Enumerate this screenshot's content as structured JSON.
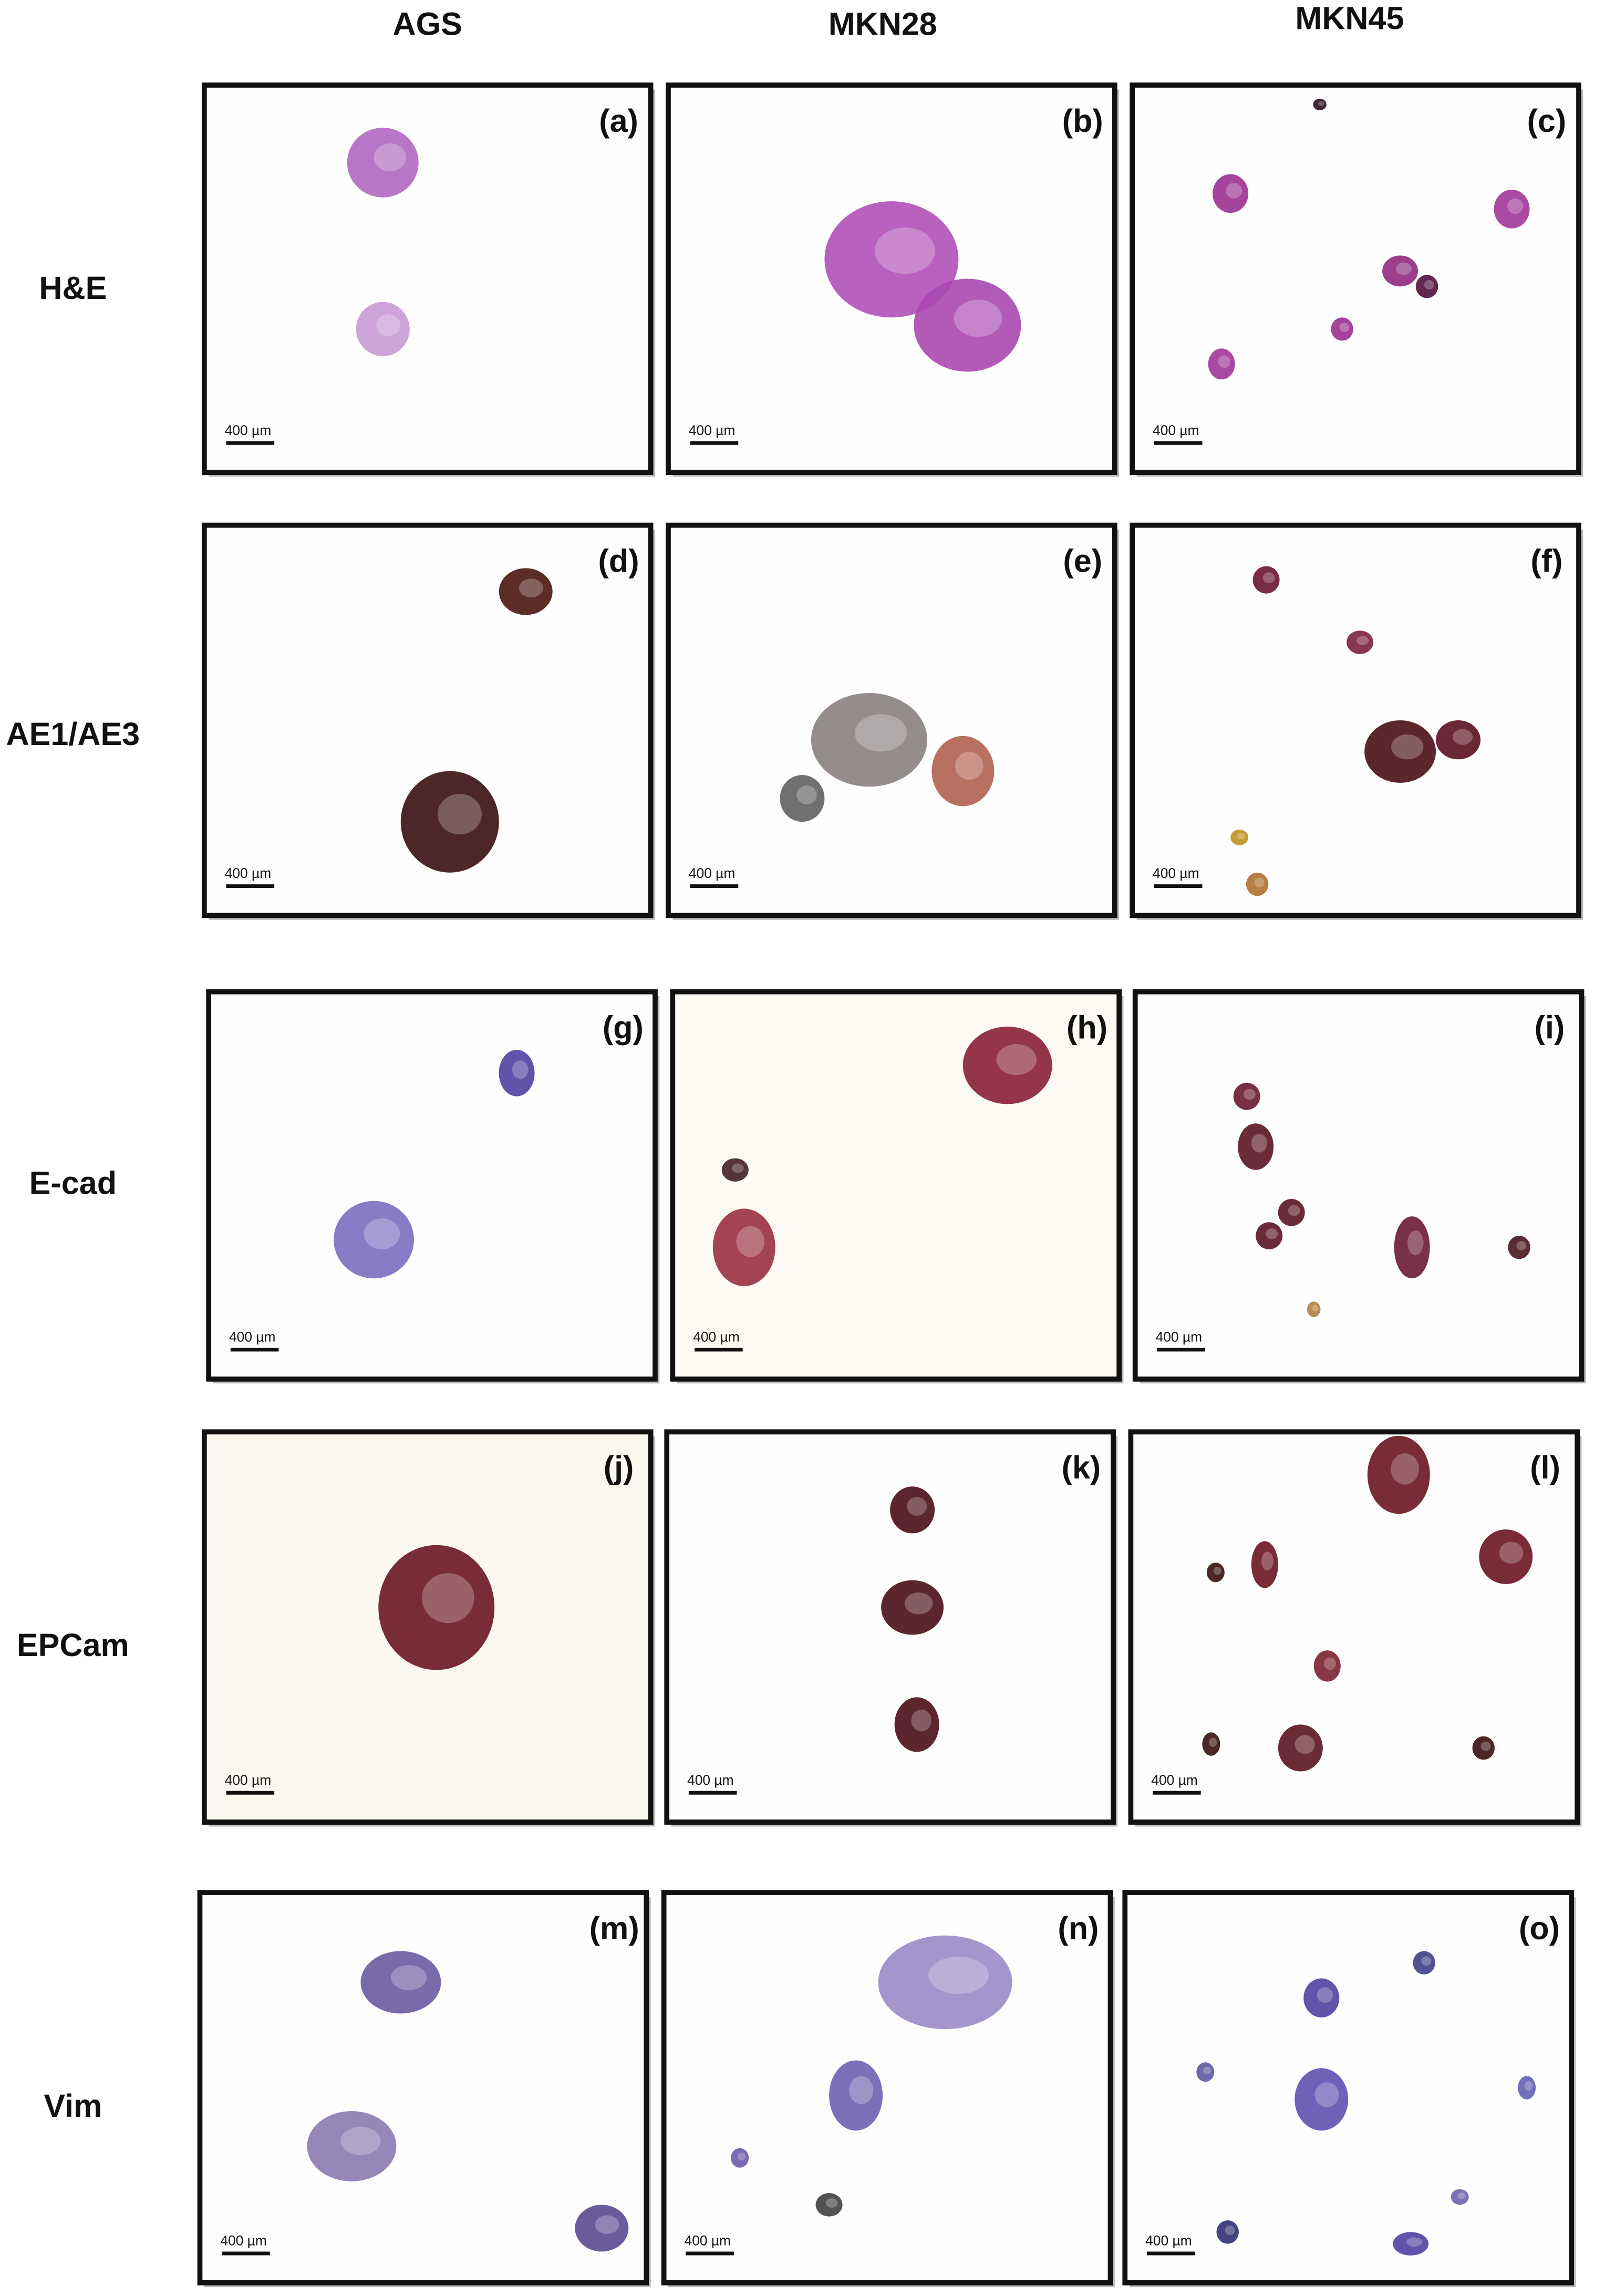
{
  "columns": [
    "AGS",
    "MKN28",
    "MKN45"
  ],
  "rows": [
    {
      "label": "H&E",
      "panels": [
        {
          "label": "(a)",
          "scale_bar": "400 µm"
        },
        {
          "label": "(b)",
          "scale_bar": "400 µm"
        },
        {
          "label": "(c)",
          "scale_bar": "400 µm"
        }
      ]
    },
    {
      "label": "AE1/AE3",
      "panels": [
        {
          "label": "(d)",
          "scale_bar": "400 µm"
        },
        {
          "label": "(e)",
          "scale_bar": "400 µm"
        },
        {
          "label": "(f)",
          "scale_bar": "400 µm"
        }
      ]
    },
    {
      "label": "E-cad",
      "panels": [
        {
          "label": "(g)",
          "scale_bar": "400 µm"
        },
        {
          "label": "(h)",
          "scale_bar": "400 µm"
        },
        {
          "label": "(i)",
          "scale_bar": "400 µm"
        }
      ]
    },
    {
      "label": "EPCam",
      "panels": [
        {
          "label": "(j)",
          "scale_bar": "400 µm"
        },
        {
          "label": "(k)",
          "scale_bar": "400 µm"
        },
        {
          "label": "(l)",
          "scale_bar": "400 µm"
        }
      ]
    },
    {
      "label": "Vim",
      "panels": [
        {
          "label": "(m)",
          "scale_bar": "400 µm"
        },
        {
          "label": "(n)",
          "scale_bar": "400 µm"
        },
        {
          "label": "(o)",
          "scale_bar": "400 µm"
        }
      ]
    }
  ]
}
